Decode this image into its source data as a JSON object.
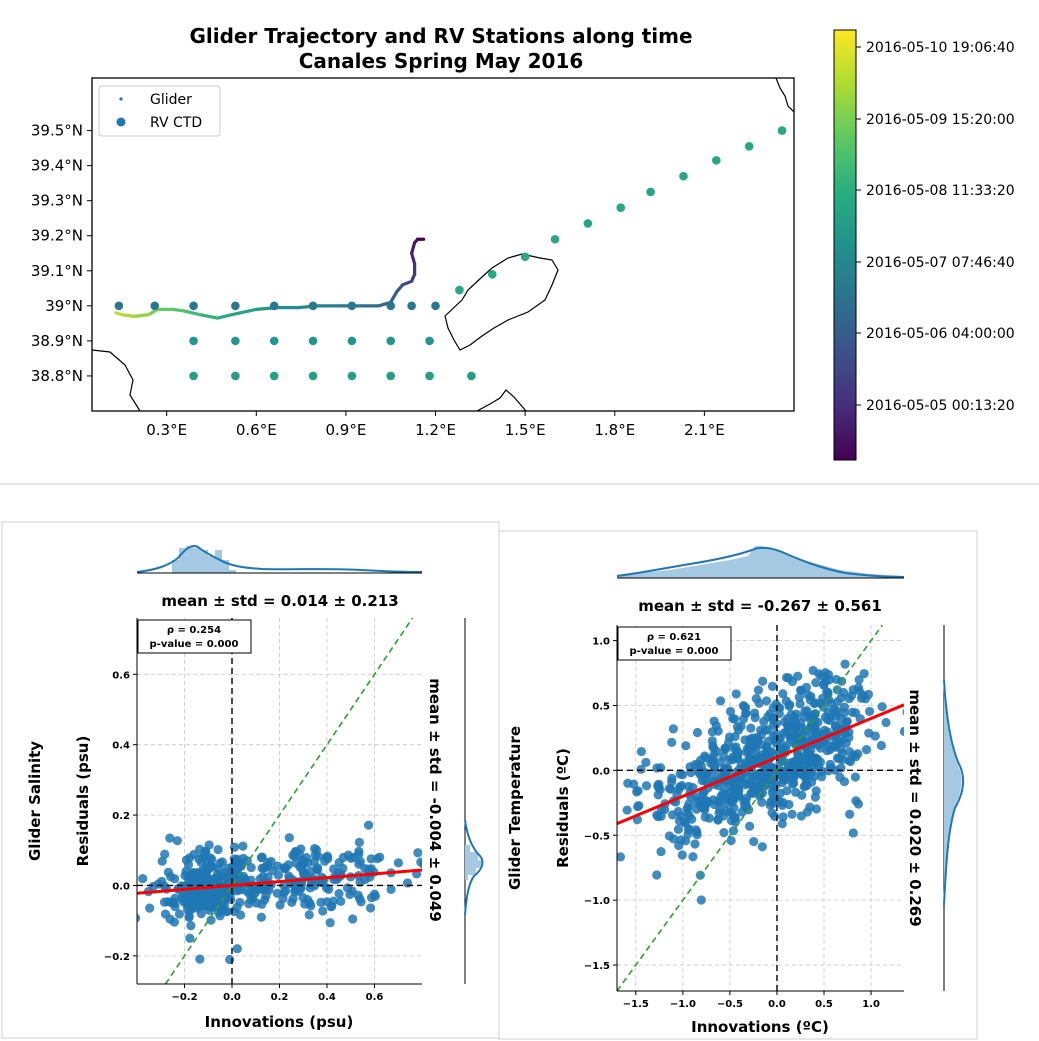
{
  "chart_data": [
    {
      "type": "scatter",
      "title": "Glider Trajectory and RV Stations along time",
      "subtitle": "Canales Spring May 2016",
      "xlim": [
        0.05,
        2.4
      ],
      "ylim": [
        38.7,
        39.65
      ],
      "x_ticks": [
        0.3,
        0.6,
        0.9,
        1.2,
        1.5,
        1.8,
        2.1
      ],
      "x_tick_labels": [
        "0.3°E",
        "0.6°E",
        "0.9°E",
        "1.2°E",
        "1.5°E",
        "1.8°E",
        "2.1°E"
      ],
      "y_ticks": [
        38.8,
        38.9,
        39.0,
        39.1,
        39.2,
        39.3,
        39.4,
        39.5
      ],
      "y_tick_labels": [
        "38.8°N",
        "38.9°N",
        "39°N",
        "39.1°N",
        "39.2°N",
        "39.3°N",
        "39.4°N",
        "39.5°N"
      ],
      "legend": {
        "position": "top-left",
        "entries": [
          "Glider",
          "RV CTD"
        ]
      },
      "colorbar": {
        "colormap": "viridis",
        "ticks": [
          "2016-05-05 00:13:20",
          "2016-05-06 04:00:00",
          "2016-05-07 07:46:40",
          "2016-05-08 11:33:20",
          "2016-05-09 15:20:00",
          "2016-05-10 19:06:40"
        ]
      },
      "series": [
        {
          "name": "Glider",
          "points": [
            [
              1.16,
              39.19
            ],
            [
              1.14,
              39.19
            ],
            [
              1.13,
              39.18
            ],
            [
              1.12,
              39.15
            ],
            [
              1.13,
              39.12
            ],
            [
              1.13,
              39.09
            ],
            [
              1.12,
              39.07
            ],
            [
              1.09,
              39.06
            ],
            [
              1.07,
              39.04
            ],
            [
              1.05,
              39.01
            ],
            [
              1.01,
              39.0
            ],
            [
              0.95,
              39.0
            ],
            [
              0.88,
              39.0
            ],
            [
              0.81,
              39.0
            ],
            [
              0.74,
              38.995
            ],
            [
              0.67,
              38.995
            ],
            [
              0.6,
              38.99
            ],
            [
              0.52,
              38.975
            ],
            [
              0.47,
              38.965
            ],
            [
              0.41,
              38.975
            ],
            [
              0.36,
              38.985
            ],
            [
              0.32,
              38.99
            ],
            [
              0.27,
              38.99
            ],
            [
              0.24,
              38.975
            ],
            [
              0.19,
              38.97
            ],
            [
              0.15,
              38.975
            ],
            [
              0.13,
              38.98
            ]
          ],
          "color_range": [
            0.0,
            0.9
          ]
        },
        {
          "name": "RV CTD",
          "points": [
            [
              2.36,
              39.5,
              0.6
            ],
            [
              2.25,
              39.455,
              0.6
            ],
            [
              2.14,
              39.415,
              0.6
            ],
            [
              2.03,
              39.37,
              0.6
            ],
            [
              1.92,
              39.325,
              0.6
            ],
            [
              1.82,
              39.28,
              0.6
            ],
            [
              1.71,
              39.235,
              0.6
            ],
            [
              1.6,
              39.19,
              0.6
            ],
            [
              1.5,
              39.14,
              0.6
            ],
            [
              1.39,
              39.09,
              0.6
            ],
            [
              1.28,
              39.045,
              0.6
            ],
            [
              0.14,
              39.0,
              0.4
            ],
            [
              0.26,
              39.0,
              0.4
            ],
            [
              0.39,
              39.0,
              0.4
            ],
            [
              0.53,
              39.0,
              0.4
            ],
            [
              0.66,
              39.0,
              0.4
            ],
            [
              0.79,
              39.0,
              0.4
            ],
            [
              0.92,
              39.0,
              0.4
            ],
            [
              1.05,
              39.0,
              0.4
            ],
            [
              1.12,
              39.0,
              0.4
            ],
            [
              1.2,
              39.0,
              0.4
            ],
            [
              0.39,
              38.9,
              0.52
            ],
            [
              0.53,
              38.9,
              0.52
            ],
            [
              0.66,
              38.9,
              0.52
            ],
            [
              0.79,
              38.9,
              0.52
            ],
            [
              0.92,
              38.9,
              0.52
            ],
            [
              1.05,
              38.9,
              0.52
            ],
            [
              1.18,
              38.9,
              0.52
            ],
            [
              0.39,
              38.8,
              0.56
            ],
            [
              0.53,
              38.8,
              0.56
            ],
            [
              0.66,
              38.8,
              0.56
            ],
            [
              0.79,
              38.8,
              0.56
            ],
            [
              0.92,
              38.8,
              0.56
            ],
            [
              1.05,
              38.8,
              0.56
            ],
            [
              1.18,
              38.8,
              0.56
            ],
            [
              1.32,
              38.8,
              0.56
            ]
          ]
        }
      ]
    },
    {
      "type": "scatter",
      "title": "mean ± std = 0.014 ± 0.213",
      "xlabel": "Innovations (psu)",
      "ylabel": "Residuals (psu)",
      "row_label": "Glider Salinity",
      "right_label": "mean ± std = -0.004 ± 0.049",
      "annotation": [
        "ρ = 0.254",
        "p-value = 0.000"
      ],
      "xlim": [
        -0.4,
        0.8
      ],
      "ylim": [
        -0.28,
        0.76
      ],
      "x_ticks": [
        -0.2,
        0.0,
        0.2,
        0.4,
        0.6
      ],
      "y_ticks": [
        -0.2,
        0.0,
        0.2,
        0.4,
        0.6
      ],
      "x_tick_labels": [
        "−0.2",
        "0.0",
        "0.2",
        "0.4",
        "0.6"
      ],
      "y_tick_labels": [
        "−0.2",
        "0.0",
        "0.2",
        "0.4",
        "0.6"
      ],
      "regression": {
        "slope": 0.055,
        "intercept": 0.0
      },
      "grid": true,
      "point_cloud": {
        "count": 440,
        "clusters": [
          {
            "x_mean": -0.1,
            "x_sd": 0.1,
            "weight": 0.55,
            "resid_sd": 0.05
          },
          {
            "x_mean": 0.3,
            "x_sd": 0.2,
            "weight": 0.45,
            "resid_sd": 0.05
          }
        ]
      }
    },
    {
      "type": "scatter",
      "title": "mean ± std = -0.267 ± 0.561",
      "xlabel": "Innovations (ºC)",
      "ylabel": "Residuals (ºC)",
      "row_label": "Glider Temperature",
      "right_label": "mean ± std = 0.020 ± 0.269",
      "annotation": [
        "ρ = 0.621",
        "p-value = 0.000"
      ],
      "xlim": [
        -1.7,
        1.35
      ],
      "ylim": [
        -1.7,
        1.12
      ],
      "x_ticks": [
        -1.5,
        -1.0,
        -0.5,
        0.0,
        0.5,
        1.0
      ],
      "y_ticks": [
        -1.5,
        -1.0,
        -0.5,
        0.0,
        0.5,
        1.0
      ],
      "x_tick_labels": [
        "−1.5",
        "−1.0",
        "−0.5",
        "0.0",
        "0.5",
        "1.0"
      ],
      "y_tick_labels": [
        "−1.5",
        "−1.0",
        "−0.5",
        "0.0",
        "0.5",
        "1.0"
      ],
      "regression": {
        "slope": 0.3,
        "intercept": 0.1
      },
      "grid": true,
      "point_cloud": {
        "count": 700,
        "clusters": [
          {
            "x_mean": -0.35,
            "x_sd": 0.55,
            "weight": 0.6,
            "resid_sd": 0.24
          },
          {
            "x_mean": 0.3,
            "x_sd": 0.35,
            "weight": 0.4,
            "resid_sd": 0.24
          }
        ]
      }
    }
  ]
}
